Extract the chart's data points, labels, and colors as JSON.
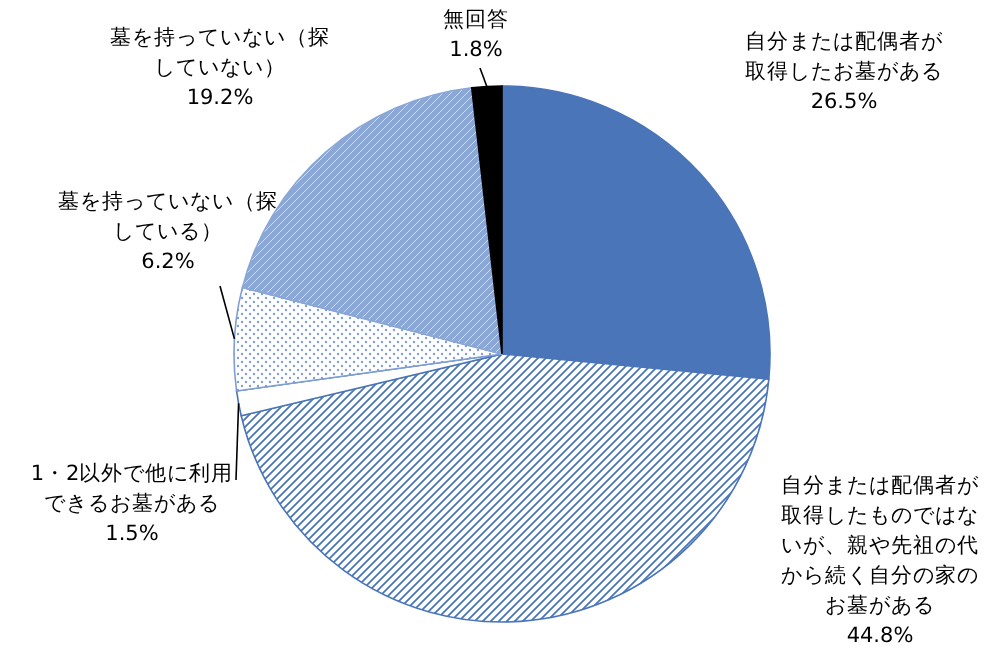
{
  "chart_data": {
    "type": "pie",
    "categories": [
      "自分または配偶者が取得したお墓がある",
      "自分または配偶者が取得したものではないが、親や先祖の代から続く自分の家のお墓がある",
      "1・2以外で他に利用できるお墓がある",
      "墓を持っていない（探している）",
      "墓を持っていない（探していない）",
      "無回答"
    ],
    "values": [
      26.5,
      44.8,
      1.5,
      6.2,
      19.2,
      1.8
    ],
    "value_labels": [
      "26.5%",
      "44.8%",
      "1.5%",
      "6.2%",
      "19.2%",
      "1.8%"
    ],
    "colors": [
      "#4a75b8",
      "#4a75b8",
      "#ffffff",
      "#7f9ed3",
      "#8aa7d6",
      "#000000"
    ]
  }
}
